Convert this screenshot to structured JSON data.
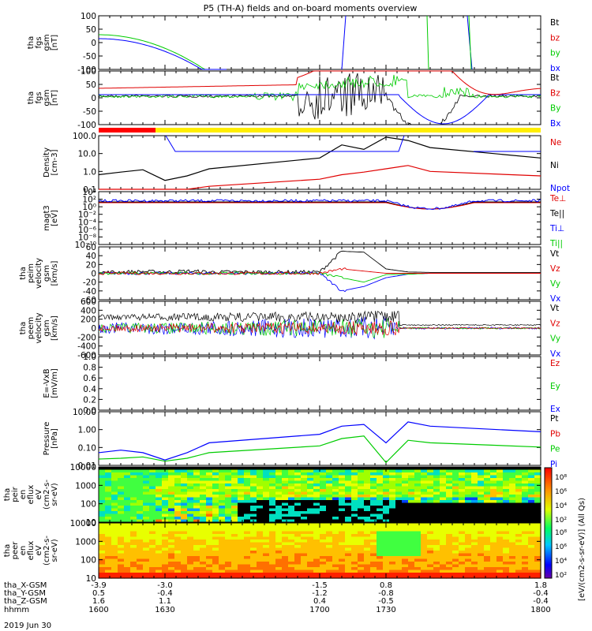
{
  "title": "P5 (TH-A) fields and on-board moments overview",
  "date_label": "2019 Jun 30",
  "colors": {
    "black": "#000000",
    "red": "#e00000",
    "green": "#00cc00",
    "blue": "#0000ff",
    "yellow": "#ffee00",
    "spec_hi": "#ff2000",
    "spec_lo": "#000080"
  },
  "panels": [
    {
      "id": "fgs",
      "ylabel": [
        "tha",
        "fgs",
        "gsm",
        "[nT]"
      ],
      "ticks": [
        "100",
        "50",
        "0",
        "-50",
        "-100"
      ],
      "legend": [
        {
          "text": "Bt",
          "color": "black"
        },
        {
          "text": "bz",
          "color": "red"
        },
        {
          "text": "by",
          "color": "green"
        },
        {
          "text": "bx",
          "color": "blue"
        }
      ]
    },
    {
      "id": "fgs_zoom",
      "ylabel": [
        "tha",
        "fgs",
        "gsm",
        "[nT]"
      ],
      "ticks": [
        "100",
        "50",
        "0",
        "-50",
        "-100"
      ],
      "legend": [
        {
          "text": "Bt",
          "color": "black"
        },
        {
          "text": "Bz",
          "color": "red"
        },
        {
          "text": "By",
          "color": "green"
        },
        {
          "text": "Bx",
          "color": "blue"
        }
      ]
    },
    {
      "id": "density",
      "ylabel": [
        "Density",
        "[cm-3]"
      ],
      "ticks": [
        "100.0",
        "10.0",
        "1.0",
        "0.1"
      ],
      "legend": [
        {
          "text": "Ne",
          "color": "red"
        },
        {
          "text": "Ni",
          "color": "black"
        },
        {
          "text": "Npot",
          "color": "blue"
        }
      ]
    },
    {
      "id": "temp",
      "ylabel": [
        "magt3",
        "[eV]"
      ],
      "ticks": [
        "10⁴",
        "10²",
        "10⁰",
        "10⁻²",
        "10⁻⁴",
        "10⁻⁶",
        "10⁻⁸",
        "10⁻¹⁰"
      ],
      "legend": [
        {
          "text": "Te⊥",
          "color": "red"
        },
        {
          "text": "Te||",
          "color": "black"
        },
        {
          "text": "Ti⊥",
          "color": "blue"
        },
        {
          "text": "Ti||",
          "color": "green"
        }
      ]
    },
    {
      "id": "peim",
      "ylabel": [
        "tha",
        "peim",
        "velocity",
        "gsm",
        "[km/s]"
      ],
      "ticks": [
        "60",
        "40",
        "20",
        "0",
        "-20",
        "-40",
        "-60"
      ],
      "legend": [
        {
          "text": "Vt",
          "color": "black"
        },
        {
          "text": "Vz",
          "color": "red"
        },
        {
          "text": "Vy",
          "color": "green"
        },
        {
          "text": "Vx",
          "color": "blue"
        }
      ]
    },
    {
      "id": "peem",
      "ylabel": [
        "tha",
        "peem",
        "velocity",
        "gsm",
        "[km/s]"
      ],
      "ticks": [
        "600",
        "400",
        "200",
        "0",
        "-200",
        "-400",
        "-600"
      ],
      "legend": [
        {
          "text": "Vt",
          "color": "black"
        },
        {
          "text": "Vz",
          "color": "red"
        },
        {
          "text": "Vy",
          "color": "green"
        },
        {
          "text": "Vx",
          "color": "blue"
        }
      ]
    },
    {
      "id": "efield",
      "ylabel": [
        "E=-VxB",
        "[mV/m]"
      ],
      "ticks": [
        "1.0",
        "0.8",
        "0.6",
        "0.4",
        "0.2",
        "0.0"
      ],
      "legend": [
        {
          "text": "Ez",
          "color": "red"
        },
        {
          "text": "Ey",
          "color": "green"
        },
        {
          "text": "Ex",
          "color": "blue"
        }
      ]
    },
    {
      "id": "pressure",
      "ylabel": [
        "Pressure",
        "[nPa]"
      ],
      "ticks": [
        "10.00",
        "1.00",
        "0.10",
        "0.01"
      ],
      "legend": [
        {
          "text": "Pt",
          "color": "black"
        },
        {
          "text": "Pb",
          "color": "red"
        },
        {
          "text": "Pe",
          "color": "green"
        },
        {
          "text": "Pi",
          "color": "blue"
        }
      ]
    },
    {
      "id": "peir",
      "ylabel": [
        "tha",
        "peir",
        "en",
        "eflux",
        "eV",
        "(cm2-s-",
        "sr-eV)"
      ],
      "ticks": [
        "10000",
        "1000",
        "100",
        "10"
      ]
    },
    {
      "id": "peer",
      "ylabel": [
        "tha",
        "peer",
        "en",
        "eflux",
        "eV",
        "(cm2-s-",
        "sr-eV)"
      ],
      "ticks": [
        "10000",
        "1000",
        "100",
        "10"
      ]
    }
  ],
  "colorbar": {
    "label": "[eV/(cm2-s-sr-eV)] (All Qs)",
    "ticks": [
      "10⁸",
      "10⁶",
      "10⁴",
      "10²"
    ]
  },
  "xaxis": {
    "row_labels": [
      "tha_X-GSM",
      "tha_Y-GSM",
      "tha_Z-GSM",
      "hhmm"
    ],
    "columns": [
      {
        "x_gsm": "-3.9",
        "y_gsm": "0.5",
        "z_gsm": "1.6",
        "hhmm": "1600"
      },
      {
        "x_gsm": "-3.0",
        "y_gsm": "-0.4",
        "z_gsm": "1.1",
        "hhmm": "1630"
      },
      {
        "x_gsm": "-1.5",
        "y_gsm": "-1.2",
        "z_gsm": "0.4",
        "hhmm": "1700"
      },
      {
        "x_gsm": "0.8",
        "y_gsm": "-0.8",
        "z_gsm": "-0.5",
        "hhmm": "1730"
      },
      {
        "x_gsm": "1.8",
        "y_gsm": "-0.4",
        "z_gsm": "-0.4",
        "hhmm": "1800"
      }
    ]
  },
  "chart_data": {
    "type": "line",
    "title": "P5 (TH-A) fields and on-board moments overview",
    "x_time_hhmm": [
      1600,
      1610,
      1620,
      1630,
      1640,
      1650,
      1700,
      1710,
      1720,
      1730,
      1740,
      1750,
      1800
    ],
    "series": [
      {
        "name": "Ni",
        "panel": "density",
        "unit": "cm-3",
        "values": [
          0.6,
          0.9,
          1.3,
          0.25,
          0.5,
          1.5,
          8,
          60,
          30,
          200,
          120,
          40,
          8
        ]
      },
      {
        "name": "Ne",
        "panel": "density",
        "unit": "cm-3",
        "values": [
          0.02,
          0.02,
          0.02,
          0.03,
          0.05,
          0.1,
          0.3,
          0.6,
          0.9,
          1.5,
          2.5,
          1.0,
          0.5
        ]
      },
      {
        "name": "Pi",
        "panel": "pressure",
        "unit": "nPa",
        "values": [
          0.02,
          0.03,
          0.02,
          0.006,
          0.02,
          0.1,
          0.4,
          1.5,
          2.0,
          0.1,
          3.0,
          1.5,
          0.6
        ]
      },
      {
        "name": "Pe",
        "panel": "pressure",
        "unit": "nPa",
        "values": [
          0.007,
          0.008,
          0.01,
          0.005,
          0.008,
          0.02,
          0.06,
          0.2,
          0.3,
          0.004,
          0.15,
          0.1,
          0.05
        ]
      },
      {
        "name": "Vt",
        "panel": "peim",
        "unit": "km/s",
        "values": [
          2,
          3,
          4,
          3,
          5,
          3,
          3,
          50,
          48,
          10,
          3,
          2,
          2
        ]
      },
      {
        "name": "Vx",
        "panel": "peim",
        "unit": "km/s",
        "values": [
          0,
          0,
          0,
          0,
          0,
          0,
          0,
          -40,
          -30,
          -10,
          -2,
          0,
          0
        ]
      },
      {
        "name": "Vy",
        "panel": "peim",
        "unit": "km/s",
        "values": [
          0,
          0,
          0,
          0,
          0,
          0,
          0,
          -10,
          -20,
          -3,
          -2,
          0,
          0
        ]
      },
      {
        "name": "Vz",
        "panel": "peim",
        "unit": "km/s",
        "values": [
          0,
          0,
          0,
          0,
          0,
          0,
          0,
          10,
          5,
          0,
          0,
          0,
          0
        ]
      },
      {
        "name": "Bx",
        "panel": "fgs_zoom",
        "unit": "nT",
        "values": [
          0,
          2,
          5,
          10,
          20,
          50,
          90,
          20,
          -100,
          -60,
          -10,
          0,
          5
        ]
      },
      {
        "name": "Bz",
        "panel": "fgs_zoom",
        "unit": "nT",
        "values": [
          20,
          22,
          25,
          30,
          45,
          60,
          80,
          90,
          40,
          5,
          10,
          10,
          10
        ]
      }
    ],
    "xlabel": "hhmm",
    "xlim": [
      1600,
      1800
    ],
    "grid": false,
    "legend_position": "right"
  }
}
